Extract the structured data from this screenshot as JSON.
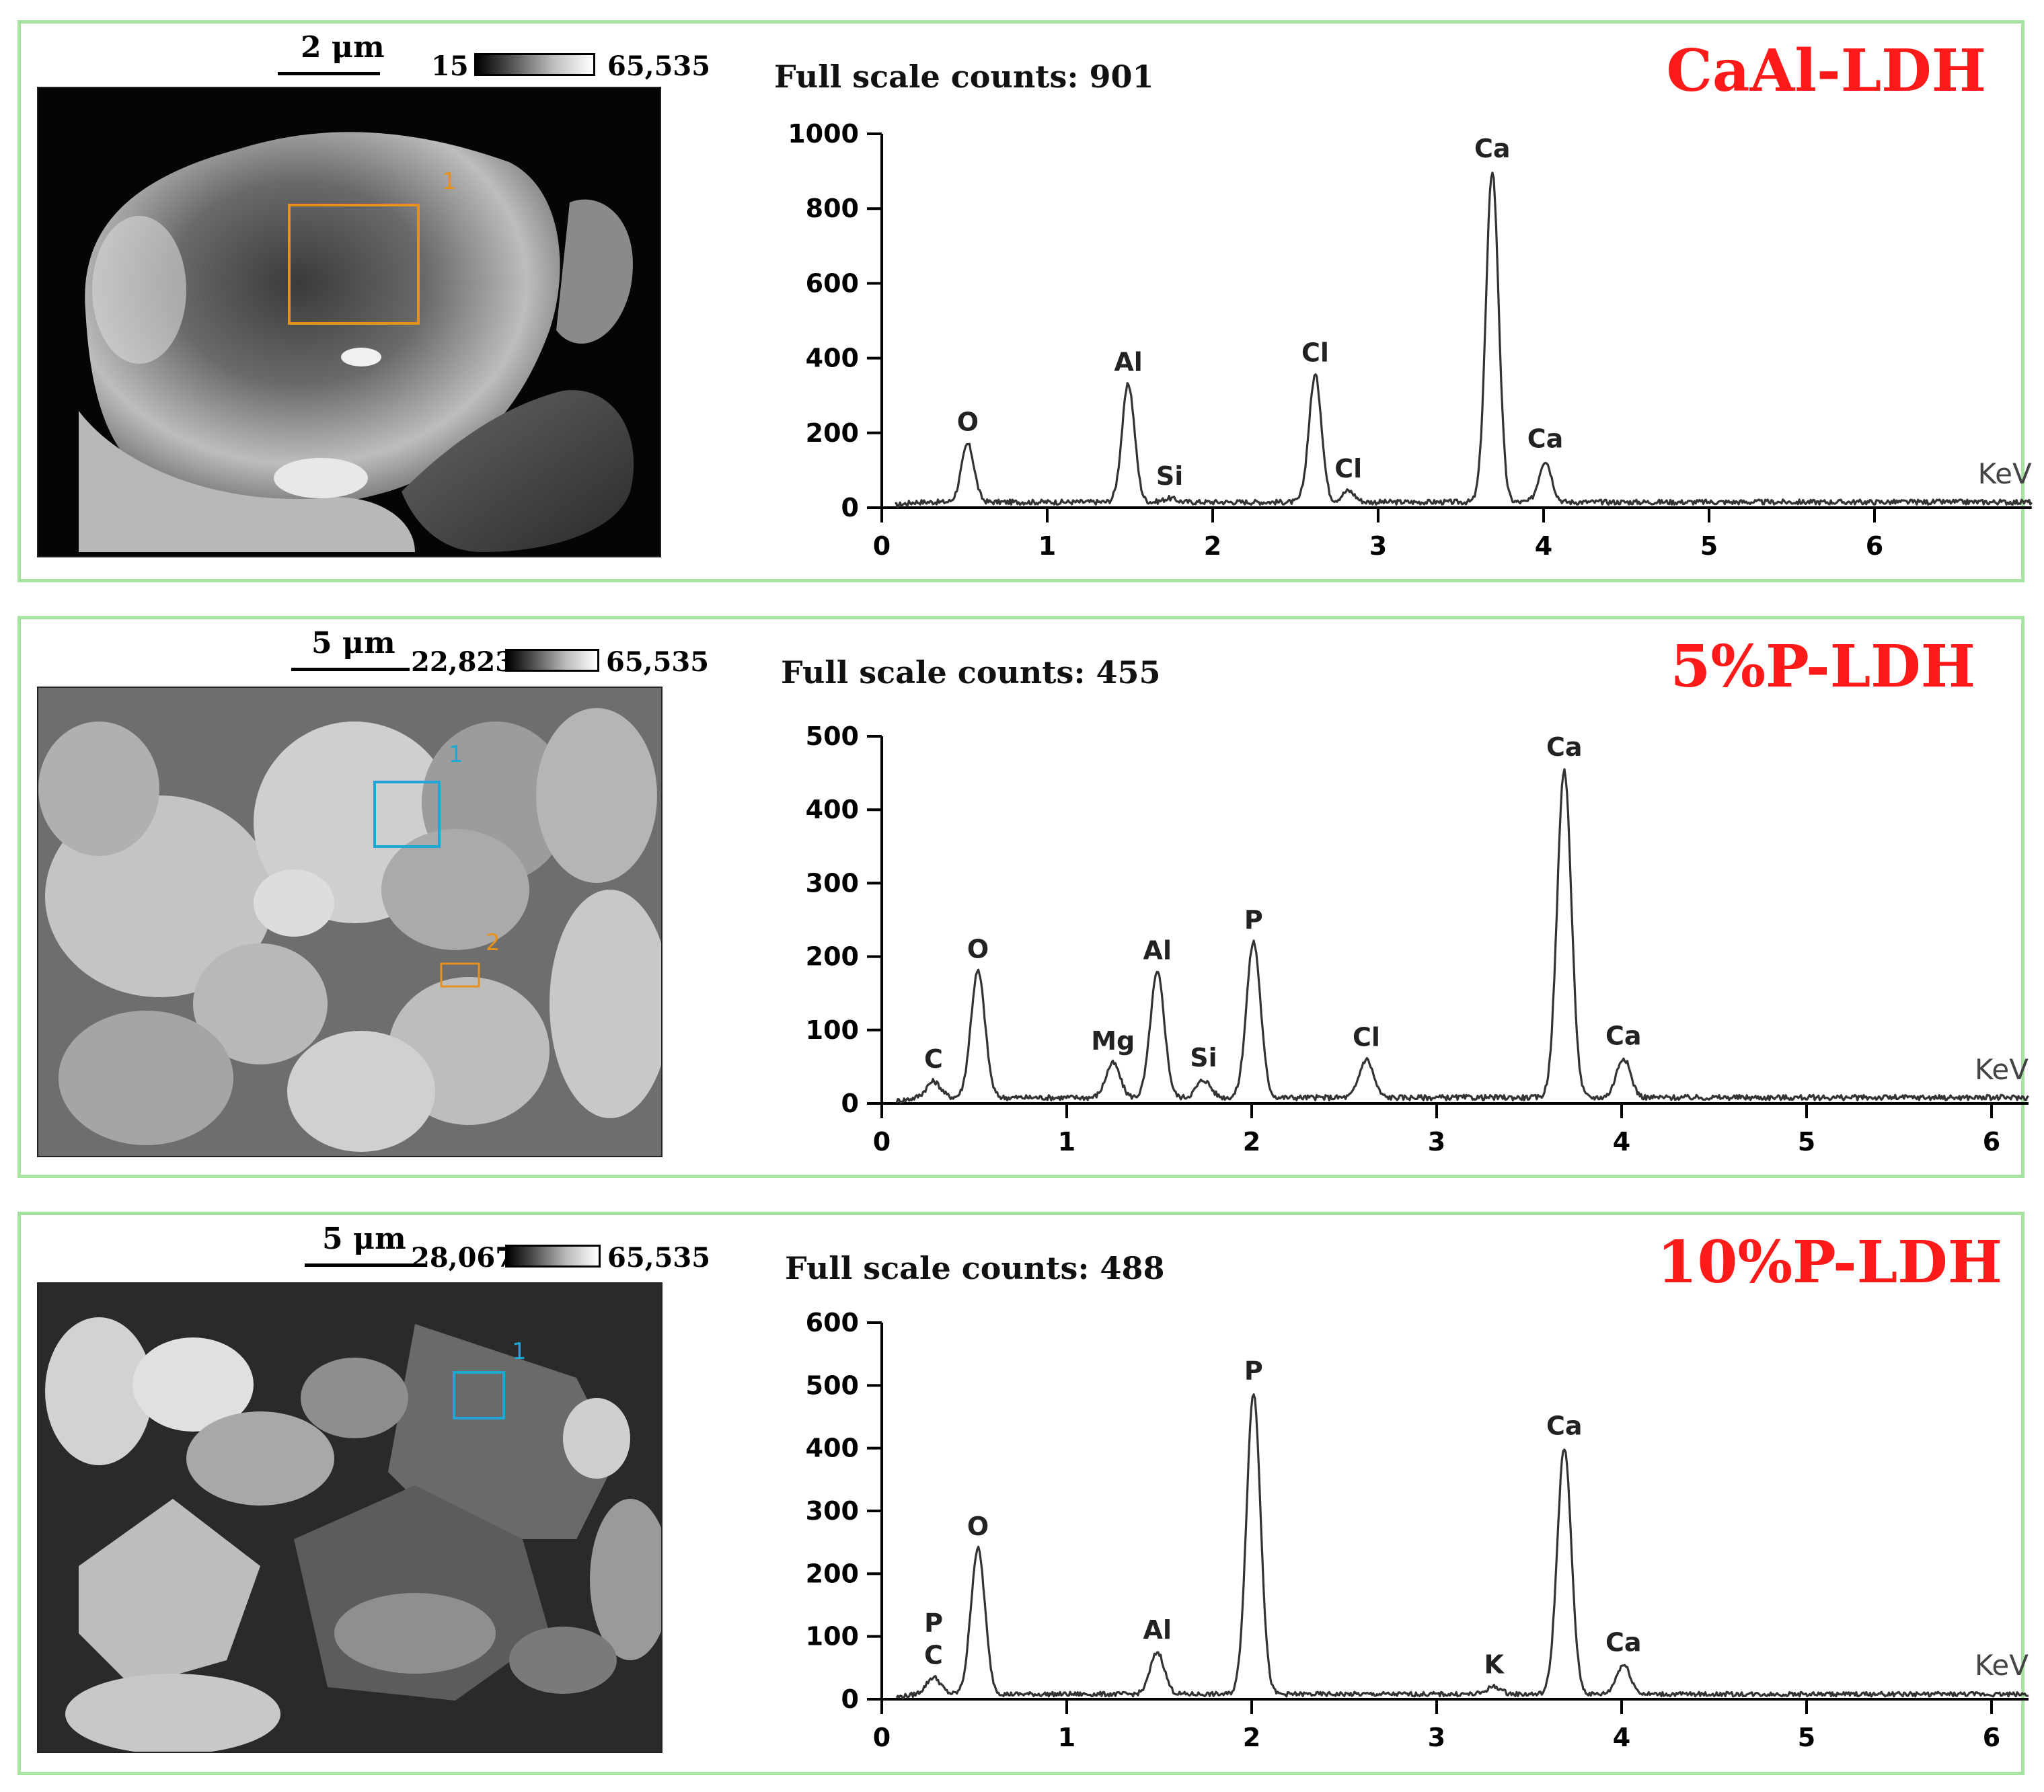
{
  "panels": [
    {
      "scale_label": "2 μm",
      "lut_min": "15",
      "lut_max": "65,535",
      "full_scale_label": "Full scale counts: 901",
      "sample_name": "CaAl-LDH",
      "roi": [
        {
          "label": "1",
          "color": "#e8901e"
        }
      ],
      "chart_data": {
        "type": "line",
        "title": "",
        "xlabel": "KeV",
        "ylabel": "",
        "xlim": [
          0,
          6.95
        ],
        "ylim": [
          0,
          1000
        ],
        "xticks": [
          0,
          1,
          2,
          3,
          4,
          5,
          6
        ],
        "yticks": [
          0,
          200,
          400,
          600,
          800,
          1000
        ],
        "baseline": 15,
        "peaks": [
          {
            "label": "O",
            "x": 0.52,
            "y": 170
          },
          {
            "label": "Al",
            "x": 1.49,
            "y": 330
          },
          {
            "label": "Si",
            "x": 1.74,
            "y": 25
          },
          {
            "label": "Cl",
            "x": 2.62,
            "y": 355
          },
          {
            "label": "Cl",
            "x": 2.82,
            "y": 45
          },
          {
            "label": "Ca",
            "x": 3.69,
            "y": 901
          },
          {
            "label": "Ca",
            "x": 4.01,
            "y": 125
          }
        ]
      }
    },
    {
      "scale_label": "5 μm",
      "lut_min": "22,823",
      "lut_max": "65,535",
      "full_scale_label": "Full scale counts: 455",
      "sample_name": "5%P-LDH",
      "roi": [
        {
          "label": "1",
          "color": "#1fa8d6"
        },
        {
          "label": "2",
          "color": "#e8901e"
        }
      ],
      "chart_data": {
        "type": "line",
        "title": "",
        "xlabel": "KeV",
        "ylabel": "",
        "xlim": [
          0,
          6.2
        ],
        "ylim": [
          0,
          500
        ],
        "xticks": [
          0,
          1,
          2,
          3,
          4,
          5,
          6
        ],
        "yticks": [
          0,
          100,
          200,
          300,
          400,
          500
        ],
        "baseline": 8,
        "peaks": [
          {
            "label": "C",
            "x": 0.28,
            "y": 30
          },
          {
            "label": "O",
            "x": 0.52,
            "y": 180
          },
          {
            "label": "Mg",
            "x": 1.25,
            "y": 55
          },
          {
            "label": "Al",
            "x": 1.49,
            "y": 178
          },
          {
            "label": "Si",
            "x": 1.74,
            "y": 32
          },
          {
            "label": "P",
            "x": 2.01,
            "y": 220
          },
          {
            "label": "Cl",
            "x": 2.62,
            "y": 60
          },
          {
            "label": "Ca",
            "x": 3.69,
            "y": 455
          },
          {
            "label": "Ca",
            "x": 4.01,
            "y": 62
          }
        ]
      }
    },
    {
      "scale_label": "5 μm",
      "lut_min": "28,067",
      "lut_max": "65,535",
      "full_scale_label": "Full scale counts: 488",
      "sample_name": "10%P-LDH",
      "roi": [
        {
          "label": "1",
          "color": "#1fa8d6"
        }
      ],
      "chart_data": {
        "type": "line",
        "title": "",
        "xlabel": "KeV",
        "ylabel": "",
        "xlim": [
          0,
          6.2
        ],
        "ylim": [
          0,
          620
        ],
        "xticks": [
          0,
          1,
          2,
          3,
          4,
          5,
          6
        ],
        "yticks": [
          0,
          100,
          200,
          300,
          400,
          500,
          600
        ],
        "baseline": 8,
        "peaks": [
          {
            "label": "P\nC",
            "x": 0.28,
            "y": 35
          },
          {
            "label": "O",
            "x": 0.52,
            "y": 240
          },
          {
            "label": "Al",
            "x": 1.49,
            "y": 75
          },
          {
            "label": "P",
            "x": 2.01,
            "y": 488
          },
          {
            "label": "K",
            "x": 3.31,
            "y": 20
          },
          {
            "label": "Ca",
            "x": 3.69,
            "y": 400
          },
          {
            "label": "Ca",
            "x": 4.01,
            "y": 55
          }
        ]
      }
    }
  ]
}
